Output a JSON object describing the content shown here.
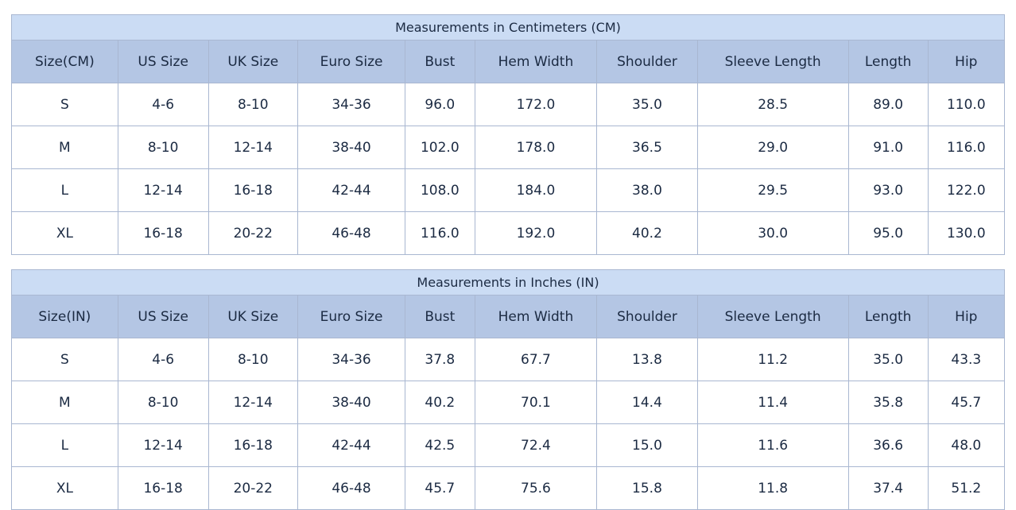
{
  "colors": {
    "title_row_bg": "#cbdcf4",
    "header_row_bg": "#b4c6e4",
    "cell_border": "#a9b7d1",
    "outer_border": "#8b9cba",
    "text": "#1b2a42",
    "row_bg": "#ffffff"
  },
  "layout": {
    "column_width_percents": [
      10.7,
      9.1,
      9.0,
      10.8,
      7.0,
      12.3,
      10.1,
      15.2,
      8.0,
      7.7
    ]
  },
  "chart_data": [
    {
      "type": "table",
      "title": "Measurements in Centimeters (CM)",
      "columns": [
        "Size(CM)",
        "US Size",
        "UK Size",
        "Euro Size",
        "Bust",
        "Hem Width",
        "Shoulder",
        "Sleeve Length",
        "Length",
        "Hip"
      ],
      "rows": [
        [
          "S",
          "4-6",
          "8-10",
          "34-36",
          "96.0",
          "172.0",
          "35.0",
          "28.5",
          "89.0",
          "110.0"
        ],
        [
          "M",
          "8-10",
          "12-14",
          "38-40",
          "102.0",
          "178.0",
          "36.5",
          "29.0",
          "91.0",
          "116.0"
        ],
        [
          "L",
          "12-14",
          "16-18",
          "42-44",
          "108.0",
          "184.0",
          "38.0",
          "29.5",
          "93.0",
          "122.0"
        ],
        [
          "XL",
          "16-18",
          "20-22",
          "46-48",
          "116.0",
          "192.0",
          "40.2",
          "30.0",
          "95.0",
          "130.0"
        ]
      ]
    },
    {
      "type": "table",
      "title": "Measurements in Inches (IN)",
      "columns": [
        "Size(IN)",
        "US Size",
        "UK Size",
        "Euro Size",
        "Bust",
        "Hem Width",
        "Shoulder",
        "Sleeve Length",
        "Length",
        "Hip"
      ],
      "rows": [
        [
          "S",
          "4-6",
          "8-10",
          "34-36",
          "37.8",
          "67.7",
          "13.8",
          "11.2",
          "35.0",
          "43.3"
        ],
        [
          "M",
          "8-10",
          "12-14",
          "38-40",
          "40.2",
          "70.1",
          "14.4",
          "11.4",
          "35.8",
          "45.7"
        ],
        [
          "L",
          "12-14",
          "16-18",
          "42-44",
          "42.5",
          "72.4",
          "15.0",
          "11.6",
          "36.6",
          "48.0"
        ],
        [
          "XL",
          "16-18",
          "20-22",
          "46-48",
          "45.7",
          "75.6",
          "15.8",
          "11.8",
          "37.4",
          "51.2"
        ]
      ]
    }
  ]
}
